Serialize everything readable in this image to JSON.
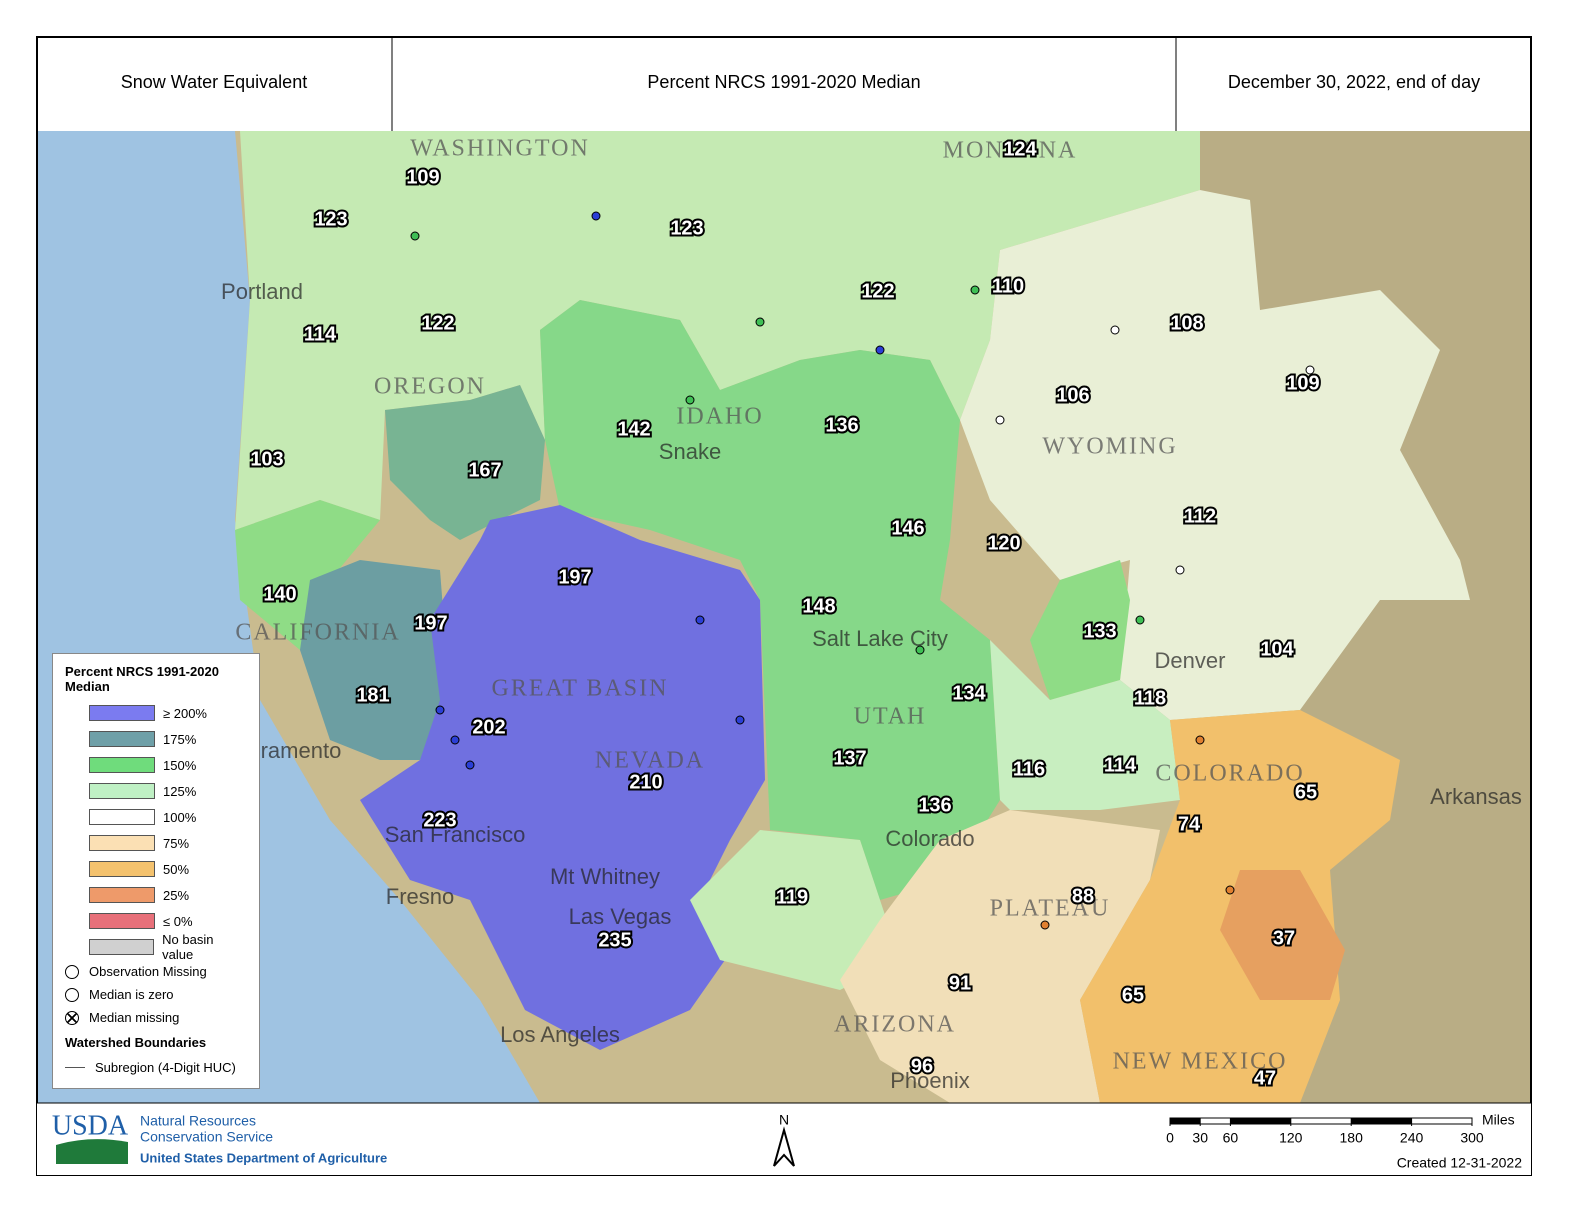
{
  "header": {
    "left": "Snow Water Equivalent",
    "center": "Percent NRCS 1991-2020 Median",
    "right": "December 30, 2022, end of day"
  },
  "basins": [
    124,
    109,
    123,
    123,
    122,
    110,
    108,
    114,
    122,
    109,
    106,
    142,
    136,
    167,
    103,
    112,
    146,
    120,
    197,
    140,
    197,
    148,
    133,
    104,
    181,
    202,
    134,
    118,
    137,
    210,
    116,
    114,
    65,
    74,
    136,
    223,
    119,
    88,
    37,
    235,
    91,
    65,
    96,
    47
  ],
  "places": [
    "WASHINGTON",
    "MONTANA",
    "Portland",
    "OREGON",
    "IDAHO",
    "WYOMING",
    "CALIFORNIA",
    "GREAT BASIN",
    "NEVADA",
    "Salt Lake City",
    "UTAH",
    "COLORADO",
    "Sacramento",
    "San Francisco",
    "Fresno",
    "Mt Whitney",
    "Las Vegas",
    "Los Angeles",
    "ARIZONA",
    "Phoenix",
    "NEW MEXICO",
    "Denver",
    "Arkansas",
    "Snake",
    "Colorado",
    "PLATEAU"
  ],
  "legend": {
    "title": "Percent NRCS 1991-2020 Median",
    "classes": [
      {
        "label": "≥ 200%",
        "color": "#7b7bf0"
      },
      {
        "label": "175%",
        "color": "#6fa0a8"
      },
      {
        "label": "150%",
        "color": "#6fdc7c"
      },
      {
        "label": "125%",
        "color": "#bff0c4"
      },
      {
        "label": "100%",
        "color": "#ffffff"
      },
      {
        "label": "75%",
        "color": "#fbe0b4"
      },
      {
        "label": "50%",
        "color": "#f4c26e"
      },
      {
        "label": "25%",
        "color": "#ee9a6a"
      },
      {
        "label": "≤ 0%",
        "color": "#e8707a"
      },
      {
        "label": "No basin value",
        "color": "#d0d0d0"
      }
    ],
    "symbols": [
      "Observation Missing",
      "Median is zero",
      "Median missing"
    ],
    "boundaries_title": "Watershed Boundaries",
    "boundary": "Subregion (4-Digit HUC)"
  },
  "footer": {
    "agency": "USDA",
    "line1": "Natural Resources",
    "line2": "Conservation Service",
    "department": "United States Department of Agriculture",
    "north": "N",
    "scale_unit": "Miles",
    "scale_ticks": [
      0,
      30,
      60,
      120,
      180,
      240,
      300
    ],
    "created": "Created 12-31-2022"
  }
}
